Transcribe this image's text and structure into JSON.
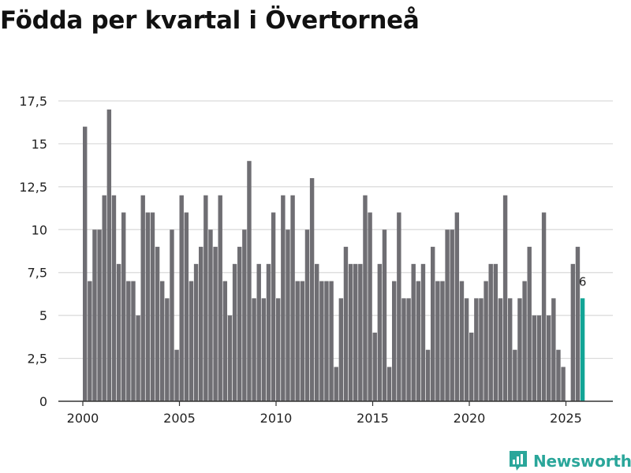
{
  "page": {
    "title": "Födda per kvartal i Övertorneå"
  },
  "brand": {
    "name": "Newsworthy",
    "color": "#2aa69a"
  },
  "chart_data": {
    "type": "bar",
    "title": "Födda per kvartal i Övertorneå",
    "xlabel": "",
    "ylabel": "",
    "ylim": [
      0,
      17.5
    ],
    "yticks": [
      0,
      2.5,
      5,
      7.5,
      10,
      12.5,
      15,
      17.5
    ],
    "ytick_labels": [
      "0",
      "2,5",
      "5",
      "7,5",
      "10",
      "12,5",
      "15",
      "17,5"
    ],
    "xticks": [
      2000,
      2005,
      2010,
      2015,
      2020,
      2025
    ],
    "xtick_labels": [
      "2000",
      "2005",
      "2010",
      "2015",
      "2020",
      "2025"
    ],
    "grid": true,
    "bar_color": "#6f6e73",
    "highlight_color": "#12a596",
    "highlight_label": "6",
    "x_start": 2000,
    "periods_per_year": 4,
    "values": [
      16,
      7,
      10,
      10,
      12,
      17,
      12,
      8,
      11,
      7,
      7,
      5,
      12,
      11,
      11,
      9,
      7,
      6,
      10,
      3,
      12,
      11,
      7,
      8,
      9,
      12,
      10,
      9,
      12,
      7,
      5,
      8,
      9,
      10,
      14,
      6,
      8,
      6,
      8,
      11,
      6,
      12,
      10,
      12,
      7,
      7,
      10,
      13,
      8,
      7,
      7,
      7,
      2,
      6,
      9,
      8,
      8,
      8,
      12,
      11,
      4,
      8,
      10,
      2,
      7,
      11,
      6,
      6,
      8,
      7,
      8,
      3,
      9,
      7,
      7,
      10,
      10,
      11,
      7,
      6,
      4,
      6,
      6,
      7,
      8,
      8,
      6,
      12,
      6,
      3,
      6,
      7,
      9,
      5,
      5,
      11,
      5,
      6,
      3,
      2,
      0,
      8,
      9,
      6
    ]
  }
}
